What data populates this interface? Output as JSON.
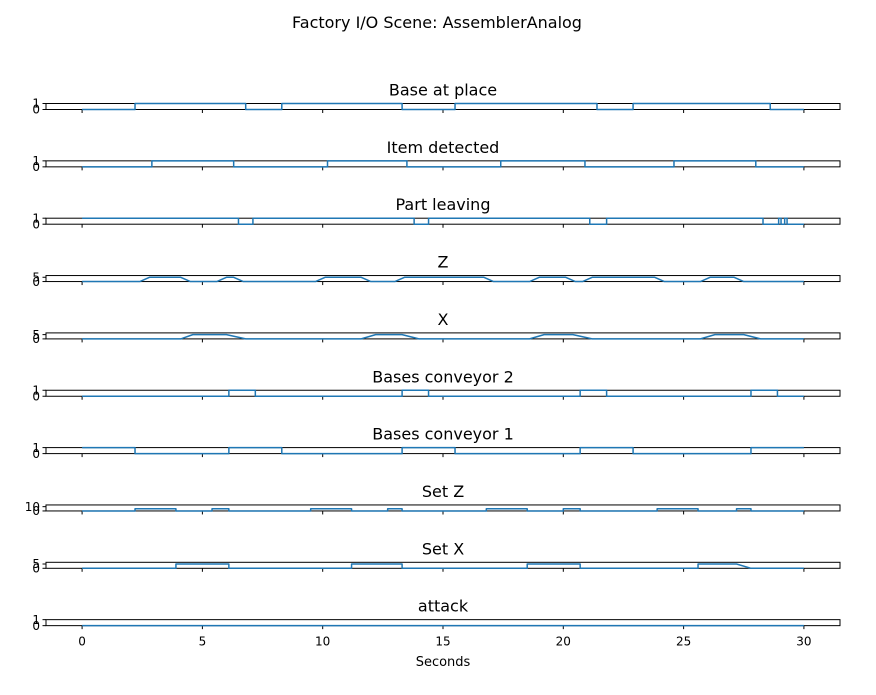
{
  "chart_data": {
    "type": "line",
    "title": "Factory I/O Scene: AssemblerAnalog",
    "xlabel": "Seconds",
    "xlim": [
      -1.5,
      31.5
    ],
    "xticks": [
      0,
      5,
      10,
      15,
      20,
      25,
      30
    ],
    "line_color": "#1f77b4",
    "series": [
      {
        "name": "Base at place",
        "ylim": [
          0,
          1
        ],
        "yticks": [
          0,
          1
        ],
        "x": [
          0,
          2.2,
          2.2,
          6.8,
          6.8,
          8.3,
          8.3,
          13.3,
          13.3,
          14.0,
          14.0,
          15.5,
          15.5,
          21.4,
          21.4,
          22.9,
          22.9,
          28.6,
          28.6,
          28.75,
          28.75,
          30
        ],
        "y": [
          0,
          0,
          1,
          1,
          0,
          0,
          1,
          1,
          0,
          0,
          0,
          0,
          1,
          1,
          0,
          0,
          1,
          1,
          0,
          0,
          0,
          0
        ]
      },
      {
        "name": "Item detected",
        "ylim": [
          0,
          1
        ],
        "yticks": [
          0,
          1
        ],
        "x": [
          0,
          2.9,
          2.9,
          6.3,
          6.3,
          10.2,
          10.2,
          13.5,
          13.5,
          17.4,
          17.4,
          20.9,
          20.9,
          24.6,
          24.6,
          28.0,
          28.0,
          30
        ],
        "y": [
          0,
          0,
          1,
          1,
          0,
          0,
          1,
          1,
          0,
          0,
          1,
          1,
          0,
          0,
          1,
          1,
          0,
          0
        ]
      },
      {
        "name": "Part leaving",
        "ylim": [
          0,
          1
        ],
        "yticks": [
          0,
          1
        ],
        "x": [
          0,
          6.5,
          6.5,
          7.1,
          7.1,
          13.8,
          13.8,
          14.4,
          14.4,
          21.1,
          21.1,
          21.8,
          21.8,
          28.3,
          28.3,
          28.95,
          28.95,
          29.05,
          29.05,
          29.2,
          29.2,
          29.3,
          29.3,
          30
        ],
        "y": [
          1,
          1,
          0,
          0,
          1,
          1,
          0,
          0,
          1,
          1,
          0,
          0,
          1,
          1,
          0,
          0,
          1,
          1,
          0,
          0,
          1,
          1,
          0,
          0
        ]
      },
      {
        "name": "Z",
        "ylim": [
          0,
          7
        ],
        "yticks": [
          0,
          5
        ],
        "x": [
          0,
          2.4,
          2.8,
          4.1,
          4.5,
          5.6,
          6.0,
          6.3,
          6.7,
          9.7,
          10.1,
          11.6,
          12.0,
          13.0,
          13.4,
          16.7,
          17.1,
          18.6,
          19.0,
          20.1,
          20.5,
          20.8,
          21.2,
          23.8,
          24.2,
          25.7,
          26.1,
          27.1,
          27.5,
          27.8,
          28.2,
          30
        ],
        "y": [
          0,
          0,
          5,
          5,
          0,
          0,
          5,
          5,
          0,
          0,
          5,
          5,
          0,
          0,
          5,
          5,
          0,
          0,
          5,
          5,
          0,
          0,
          5,
          5,
          0,
          0,
          5,
          5,
          0,
          0,
          0,
          0
        ]
      },
      {
        "name": "X",
        "ylim": [
          0,
          7
        ],
        "yticks": [
          0,
          5
        ],
        "x": [
          0,
          4.1,
          4.6,
          6.0,
          6.8,
          11.6,
          12.2,
          13.3,
          14.0,
          18.6,
          19.2,
          20.4,
          21.2,
          25.7,
          26.3,
          27.5,
          28.2,
          30
        ],
        "y": [
          0,
          0,
          5,
          5,
          0,
          0,
          5,
          5,
          0,
          0,
          5,
          5,
          0,
          0,
          5,
          5,
          0,
          0
        ]
      },
      {
        "name": "Bases conveyor 2",
        "ylim": [
          0,
          1
        ],
        "yticks": [
          0,
          1
        ],
        "x": [
          0,
          6.1,
          6.1,
          7.2,
          7.2,
          13.3,
          13.3,
          14.4,
          14.4,
          20.7,
          20.7,
          21.8,
          21.8,
          27.8,
          27.8,
          28.9,
          28.9,
          30
        ],
        "y": [
          0,
          0,
          1,
          1,
          0,
          0,
          1,
          1,
          0,
          0,
          1,
          1,
          0,
          0,
          1,
          1,
          0,
          0
        ]
      },
      {
        "name": "Bases conveyor 1",
        "ylim": [
          0,
          1
        ],
        "yticks": [
          0,
          1
        ],
        "x": [
          0,
          2.2,
          2.2,
          6.1,
          6.1,
          8.3,
          8.3,
          13.3,
          13.3,
          15.5,
          15.5,
          20.7,
          20.7,
          22.9,
          22.9,
          27.8,
          27.8,
          30
        ],
        "y": [
          1,
          1,
          0,
          0,
          1,
          1,
          0,
          0,
          1,
          1,
          0,
          0,
          1,
          1,
          0,
          0,
          1,
          1
        ]
      },
      {
        "name": "Set Z",
        "ylim": [
          0,
          14
        ],
        "yticks": [
          0,
          10
        ],
        "x": [
          0,
          2.2,
          2.2,
          3.9,
          3.9,
          5.4,
          5.4,
          6.1,
          6.1,
          9.5,
          9.5,
          11.2,
          11.2,
          12.7,
          12.7,
          13.3,
          13.3,
          16.8,
          16.8,
          18.5,
          18.5,
          20.0,
          20.0,
          20.7,
          20.7,
          23.9,
          23.9,
          25.6,
          25.6,
          27.2,
          27.2,
          27.8,
          27.8,
          30
        ],
        "y": [
          0,
          0,
          5,
          5,
          0,
          0,
          5,
          5,
          0,
          0,
          5,
          5,
          0,
          0,
          5,
          5,
          0,
          0,
          5,
          5,
          0,
          0,
          5,
          5,
          0,
          0,
          5,
          5,
          0,
          0,
          5,
          5,
          0,
          0
        ]
      },
      {
        "name": "Set X",
        "ylim": [
          0,
          7
        ],
        "yticks": [
          0,
          5
        ],
        "x": [
          0,
          3.9,
          3.9,
          6.1,
          6.1,
          11.2,
          11.2,
          13.3,
          13.3,
          18.5,
          18.5,
          20.7,
          20.7,
          25.6,
          25.6,
          27.2,
          27.8,
          27.8,
          30
        ],
        "y": [
          0,
          0,
          5,
          5,
          0,
          0,
          5,
          5,
          0,
          0,
          5,
          5,
          0,
          0,
          5,
          5,
          0,
          0,
          0
        ]
      },
      {
        "name": "attack",
        "ylim": [
          0,
          1
        ],
        "yticks": [
          0,
          1
        ],
        "x": [
          0,
          15,
          15,
          30
        ],
        "y": [
          0,
          0,
          0,
          0
        ]
      }
    ]
  }
}
